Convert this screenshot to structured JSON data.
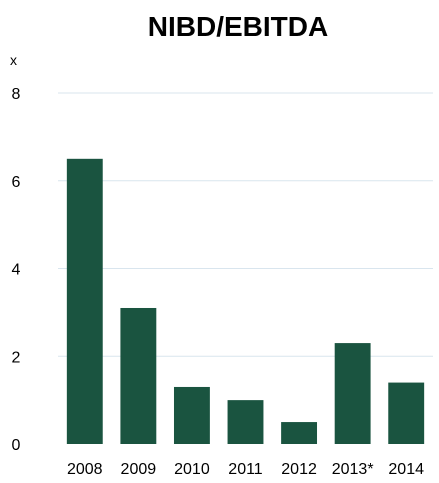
{
  "chart_data": {
    "type": "bar",
    "title": "NIBD/EBITDA",
    "unit_label": "x",
    "xlabel": "",
    "ylabel": "",
    "categories": [
      "2008",
      "2009",
      "2010",
      "2011",
      "2012",
      "2013*",
      "2014"
    ],
    "values": [
      6.5,
      3.1,
      1.3,
      1.0,
      0.5,
      2.3,
      1.4
    ],
    "ylim": [
      0,
      8
    ],
    "yticks": [
      "0",
      "2",
      "4",
      "6",
      "8"
    ],
    "grid": true,
    "legend": "none",
    "bar_color": "#1a5440",
    "grid_color": "#d9e5ee"
  }
}
